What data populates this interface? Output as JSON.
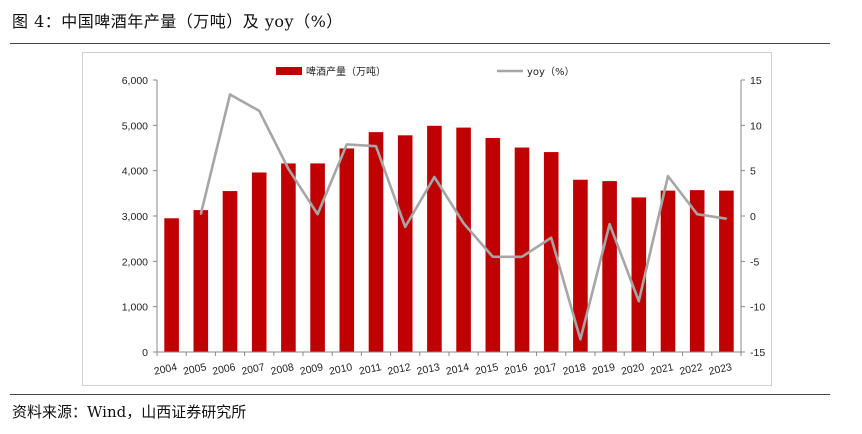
{
  "figure": {
    "title": "图 4：中国啤酒年产量（万吨）及 yoy（%）",
    "source": "资料来源：Wind，山西证券研究所"
  },
  "chart_data": {
    "type": "bar",
    "categories": [
      "2004",
      "2005",
      "2006",
      "2007",
      "2008",
      "2009",
      "2010",
      "2011",
      "2012",
      "2013",
      "2014",
      "2015",
      "2016",
      "2017",
      "2018",
      "2019",
      "2020",
      "2021",
      "2022",
      "2023"
    ],
    "series": [
      {
        "name": "啤酒产量（万吨）",
        "type": "bar",
        "axis": "left",
        "color": "#c00000",
        "values": [
          2950,
          3130,
          3550,
          3960,
          4160,
          4160,
          4490,
          4850,
          4780,
          4990,
          4950,
          4720,
          4510,
          4410,
          3800,
          3770,
          3410,
          3560,
          3570,
          3560
        ]
      },
      {
        "name": "yoy（%）",
        "type": "line",
        "axis": "right",
        "color": "#a6a6a6",
        "values": [
          null,
          0.2,
          13.4,
          11.6,
          5.2,
          0.2,
          7.9,
          7.7,
          -1.2,
          4.3,
          -0.8,
          -4.5,
          -4.5,
          -2.4,
          -13.6,
          -0.9,
          -9.4,
          4.4,
          0.2,
          -0.3
        ]
      }
    ],
    "y_left": {
      "min": 0,
      "max": 6000,
      "ticks": [
        "0",
        "1,000",
        "2,000",
        "3,000",
        "4,000",
        "5,000",
        "6,000"
      ],
      "tick_values": [
        0,
        1000,
        2000,
        3000,
        4000,
        5000,
        6000
      ]
    },
    "y_right": {
      "min": -15,
      "max": 15,
      "ticks": [
        "-15",
        "-10",
        "-5",
        "0",
        "5",
        "10",
        "15"
      ],
      "tick_values": [
        -15,
        -10,
        -5,
        0,
        5,
        10,
        15
      ]
    },
    "legend": {
      "position": "top",
      "items": [
        "啤酒产量（万吨）",
        "yoy（%）"
      ]
    },
    "grid": false
  }
}
